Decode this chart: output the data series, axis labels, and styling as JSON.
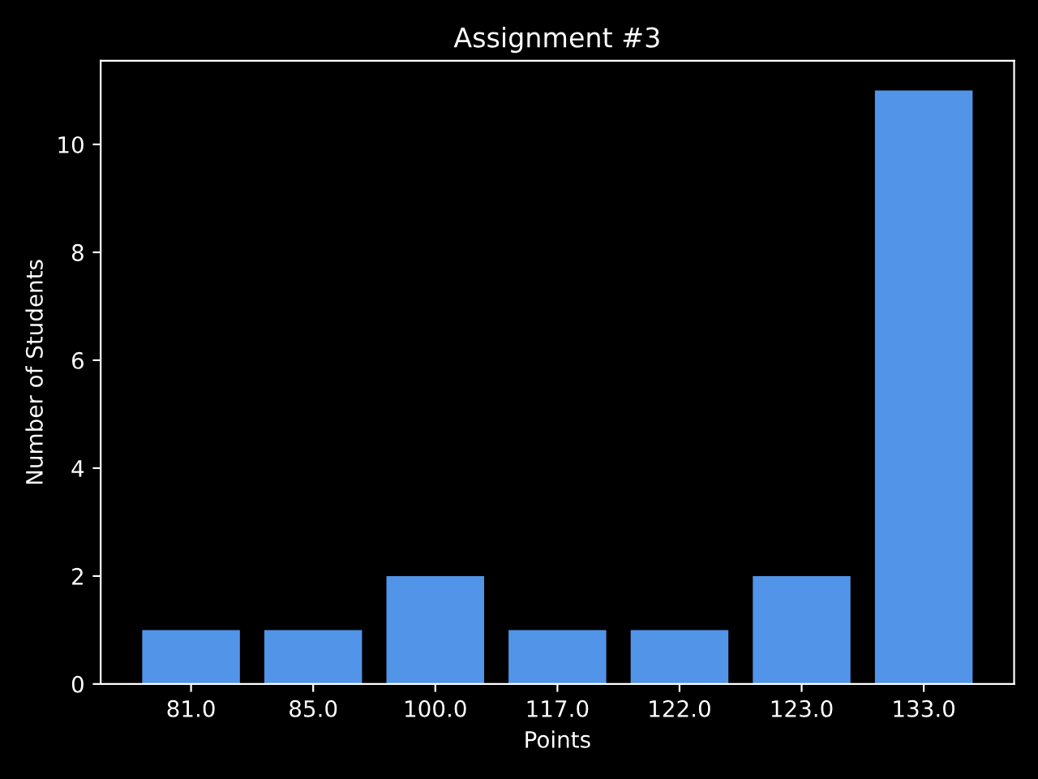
{
  "chart_data": {
    "type": "bar",
    "title": "Assignment #3",
    "xlabel": "Points",
    "ylabel": "Number of Students",
    "categories": [
      "81.0",
      "85.0",
      "100.0",
      "117.0",
      "122.0",
      "123.0",
      "133.0"
    ],
    "values": [
      1,
      1,
      2,
      1,
      1,
      2,
      11
    ],
    "color": "#5294e8",
    "ylim": [
      0,
      11.55
    ],
    "yticks": [
      0,
      2,
      4,
      6,
      8,
      10
    ],
    "grid": false,
    "legend": false
  }
}
